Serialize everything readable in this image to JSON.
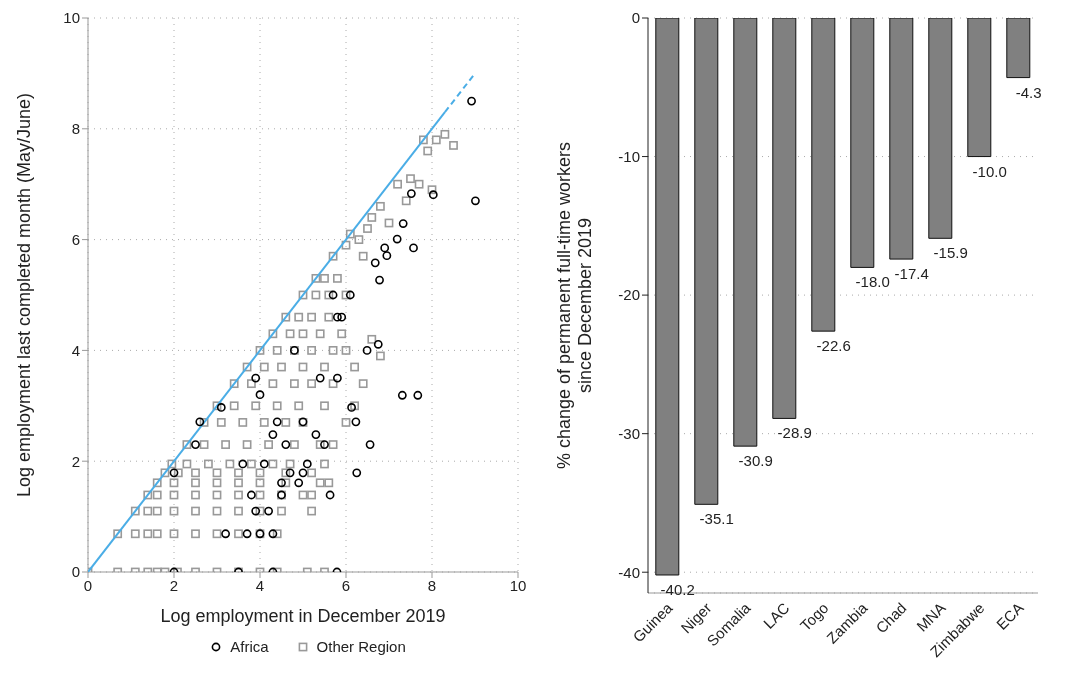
{
  "chart_data": [
    {
      "type": "scatter",
      "xlabel": "Log employment in December 2019",
      "ylabel": "Log employment last completed month (May/June)",
      "xlim": [
        0,
        10
      ],
      "ylim": [
        0,
        10
      ],
      "xticks": [
        0,
        2,
        4,
        6,
        8,
        10
      ],
      "yticks": [
        0,
        2,
        4,
        6,
        8,
        10
      ],
      "grid": true,
      "legend": "bottom",
      "series": [
        {
          "name": "Other Region",
          "color": "#999999",
          "marker": "square",
          "x": [
            0,
            0.69,
            1.1,
            1.39,
            1.61,
            1.79,
            2.08,
            2.5,
            3.0,
            3.5,
            4.0,
            4.4,
            5.1,
            5.5,
            0.69,
            1.1,
            1.39,
            1.61,
            2.0,
            2.5,
            3.0,
            3.5,
            4.0,
            4.4,
            1.1,
            1.39,
            1.61,
            2.0,
            2.5,
            3.0,
            3.5,
            4.0,
            4.5,
            5.2,
            1.39,
            1.61,
            2.0,
            2.5,
            3.0,
            3.5,
            4.0,
            4.5,
            5.0,
            5.2,
            1.61,
            2.0,
            2.5,
            3.0,
            3.5,
            4.0,
            4.6,
            5.4,
            5.6,
            1.79,
            2.1,
            2.5,
            3.0,
            3.5,
            4.0,
            4.6,
            5.2,
            1.95,
            2.3,
            2.8,
            3.3,
            3.8,
            4.3,
            4.7,
            5.5,
            2.3,
            2.7,
            3.2,
            3.7,
            4.2,
            4.8,
            5.4,
            5.7,
            2.7,
            3.1,
            3.6,
            4.1,
            4.6,
            5.0,
            6.0,
            3.0,
            3.4,
            3.9,
            4.4,
            4.9,
            5.5,
            6.2,
            3.4,
            3.8,
            4.3,
            4.8,
            5.2,
            5.7,
            3.7,
            4.1,
            4.5,
            5.0,
            5.5,
            6.2,
            4.0,
            4.4,
            4.8,
            5.2,
            5.7,
            6.0,
            4.3,
            4.7,
            5.0,
            5.4,
            5.9,
            4.6,
            4.9,
            5.2,
            5.6,
            5.0,
            5.3,
            5.6,
            6.0,
            5.3,
            5.5,
            5.8,
            5.7,
            6.0,
            6.1,
            6.3,
            6.5,
            6.6,
            6.4,
            6.8,
            7.0,
            7.2,
            7.4,
            7.5,
            7.7,
            8.0,
            7.9,
            8.1,
            8.3,
            8.5,
            7.8,
            6.4,
            6.8,
            6.6
          ],
          "values": [
            0,
            0,
            0,
            0,
            0,
            0,
            0,
            0,
            0,
            0,
            0,
            0,
            0,
            0,
            0.69,
            0.69,
            0.69,
            0.69,
            0.69,
            0.69,
            0.69,
            0.69,
            0.69,
            0.69,
            1.1,
            1.1,
            1.1,
            1.1,
            1.1,
            1.1,
            1.1,
            1.1,
            1.1,
            1.1,
            1.39,
            1.39,
            1.39,
            1.39,
            1.39,
            1.39,
            1.39,
            1.39,
            1.39,
            1.39,
            1.61,
            1.61,
            1.61,
            1.61,
            1.61,
            1.61,
            1.61,
            1.61,
            1.61,
            1.79,
            1.79,
            1.79,
            1.79,
            1.79,
            1.79,
            1.79,
            1.79,
            1.95,
            1.95,
            1.95,
            1.95,
            1.95,
            1.95,
            1.95,
            1.95,
            2.3,
            2.3,
            2.3,
            2.3,
            2.3,
            2.3,
            2.3,
            2.3,
            2.7,
            2.7,
            2.7,
            2.7,
            2.7,
            2.7,
            2.7,
            3.0,
            3.0,
            3.0,
            3.0,
            3.0,
            3.0,
            3.0,
            3.4,
            3.4,
            3.4,
            3.4,
            3.4,
            3.4,
            3.7,
            3.7,
            3.7,
            3.7,
            3.7,
            3.7,
            4.0,
            4.0,
            4.0,
            4.0,
            4.0,
            4.0,
            4.3,
            4.3,
            4.3,
            4.3,
            4.3,
            4.6,
            4.6,
            4.6,
            4.6,
            5.0,
            5.0,
            5.0,
            5.0,
            5.3,
            5.3,
            5.3,
            5.7,
            5.9,
            6.1,
            6.0,
            6.2,
            6.4,
            5.7,
            6.6,
            6.3,
            7.0,
            6.7,
            7.1,
            7.0,
            6.9,
            7.6,
            7.8,
            7.9,
            7.7,
            7.8,
            3.4,
            3.9,
            4.2
          ]
        },
        {
          "name": "Africa",
          "color": "#000000",
          "marker": "circle",
          "x": [
            2.0,
            3.5,
            4.3,
            5.79,
            3.2,
            3.7,
            4.0,
            4.3,
            3.9,
            4.2,
            3.8,
            4.5,
            5.63,
            4.5,
            4.9,
            2.0,
            4.7,
            5.0,
            6.25,
            3.6,
            4.1,
            5.1,
            2.5,
            4.6,
            5.5,
            6.56,
            4.3,
            5.3,
            2.6,
            4.4,
            5.0,
            6.23,
            3.1,
            6.13,
            4.0,
            7.31,
            7.67,
            3.9,
            5.4,
            5.8,
            4.8,
            6.49,
            6.75,
            5.8,
            5.9,
            5.7,
            6.1,
            6.68,
            6.78,
            6.95,
            6.9,
            7.19,
            7.57,
            7.33,
            7.52,
            8.03,
            8.92,
            9.01
          ],
          "values": [
            0,
            0,
            0,
            0,
            0.69,
            0.69,
            0.69,
            0.69,
            1.1,
            1.1,
            1.39,
            1.39,
            1.39,
            1.61,
            1.61,
            1.79,
            1.79,
            1.79,
            1.79,
            1.95,
            1.95,
            1.95,
            2.3,
            2.3,
            2.3,
            2.3,
            2.48,
            2.48,
            2.71,
            2.71,
            2.71,
            2.71,
            2.97,
            2.97,
            3.2,
            3.19,
            3.19,
            3.5,
            3.5,
            3.5,
            4.0,
            4.0,
            4.11,
            4.6,
            4.6,
            5.0,
            5.0,
            5.58,
            5.27,
            5.71,
            5.85,
            6.01,
            5.85,
            6.29,
            6.83,
            6.81,
            8.5,
            6.7
          ]
        },
        {
          "type": "line",
          "color": "#4aade6",
          "line_style": "solid",
          "x": [
            0,
            8.3
          ],
          "values": [
            0,
            8.3
          ]
        },
        {
          "type": "line",
          "color": "#4aade6",
          "line_style": "dashed",
          "x": [
            8.3,
            9
          ],
          "values": [
            8.3,
            9
          ]
        }
      ]
    },
    {
      "type": "bar",
      "ylabel": "% change of permanent full-time workers since December 2019",
      "categories": [
        "Guinea",
        "Niger",
        "Somalia",
        "LAC",
        "Togo",
        "Zambia",
        "Chad",
        "MNA",
        "Zimbabwe",
        "ECA"
      ],
      "values": [
        -40.2,
        -35.1,
        -30.9,
        -28.9,
        -22.6,
        -18.0,
        -17.4,
        -15.9,
        -10.0,
        -4.3
      ],
      "value_labels": [
        "-40.2",
        "-35.1",
        "-30.9",
        "-28.9",
        "-22.6",
        "-18.0",
        "-17.4",
        "-15.9",
        "-10.0",
        "-4.3"
      ],
      "color": "#808080",
      "ylim": [
        -41.5,
        0
      ],
      "yticks": [
        0,
        -10,
        -20,
        -30,
        -40
      ],
      "grid": "y"
    }
  ]
}
